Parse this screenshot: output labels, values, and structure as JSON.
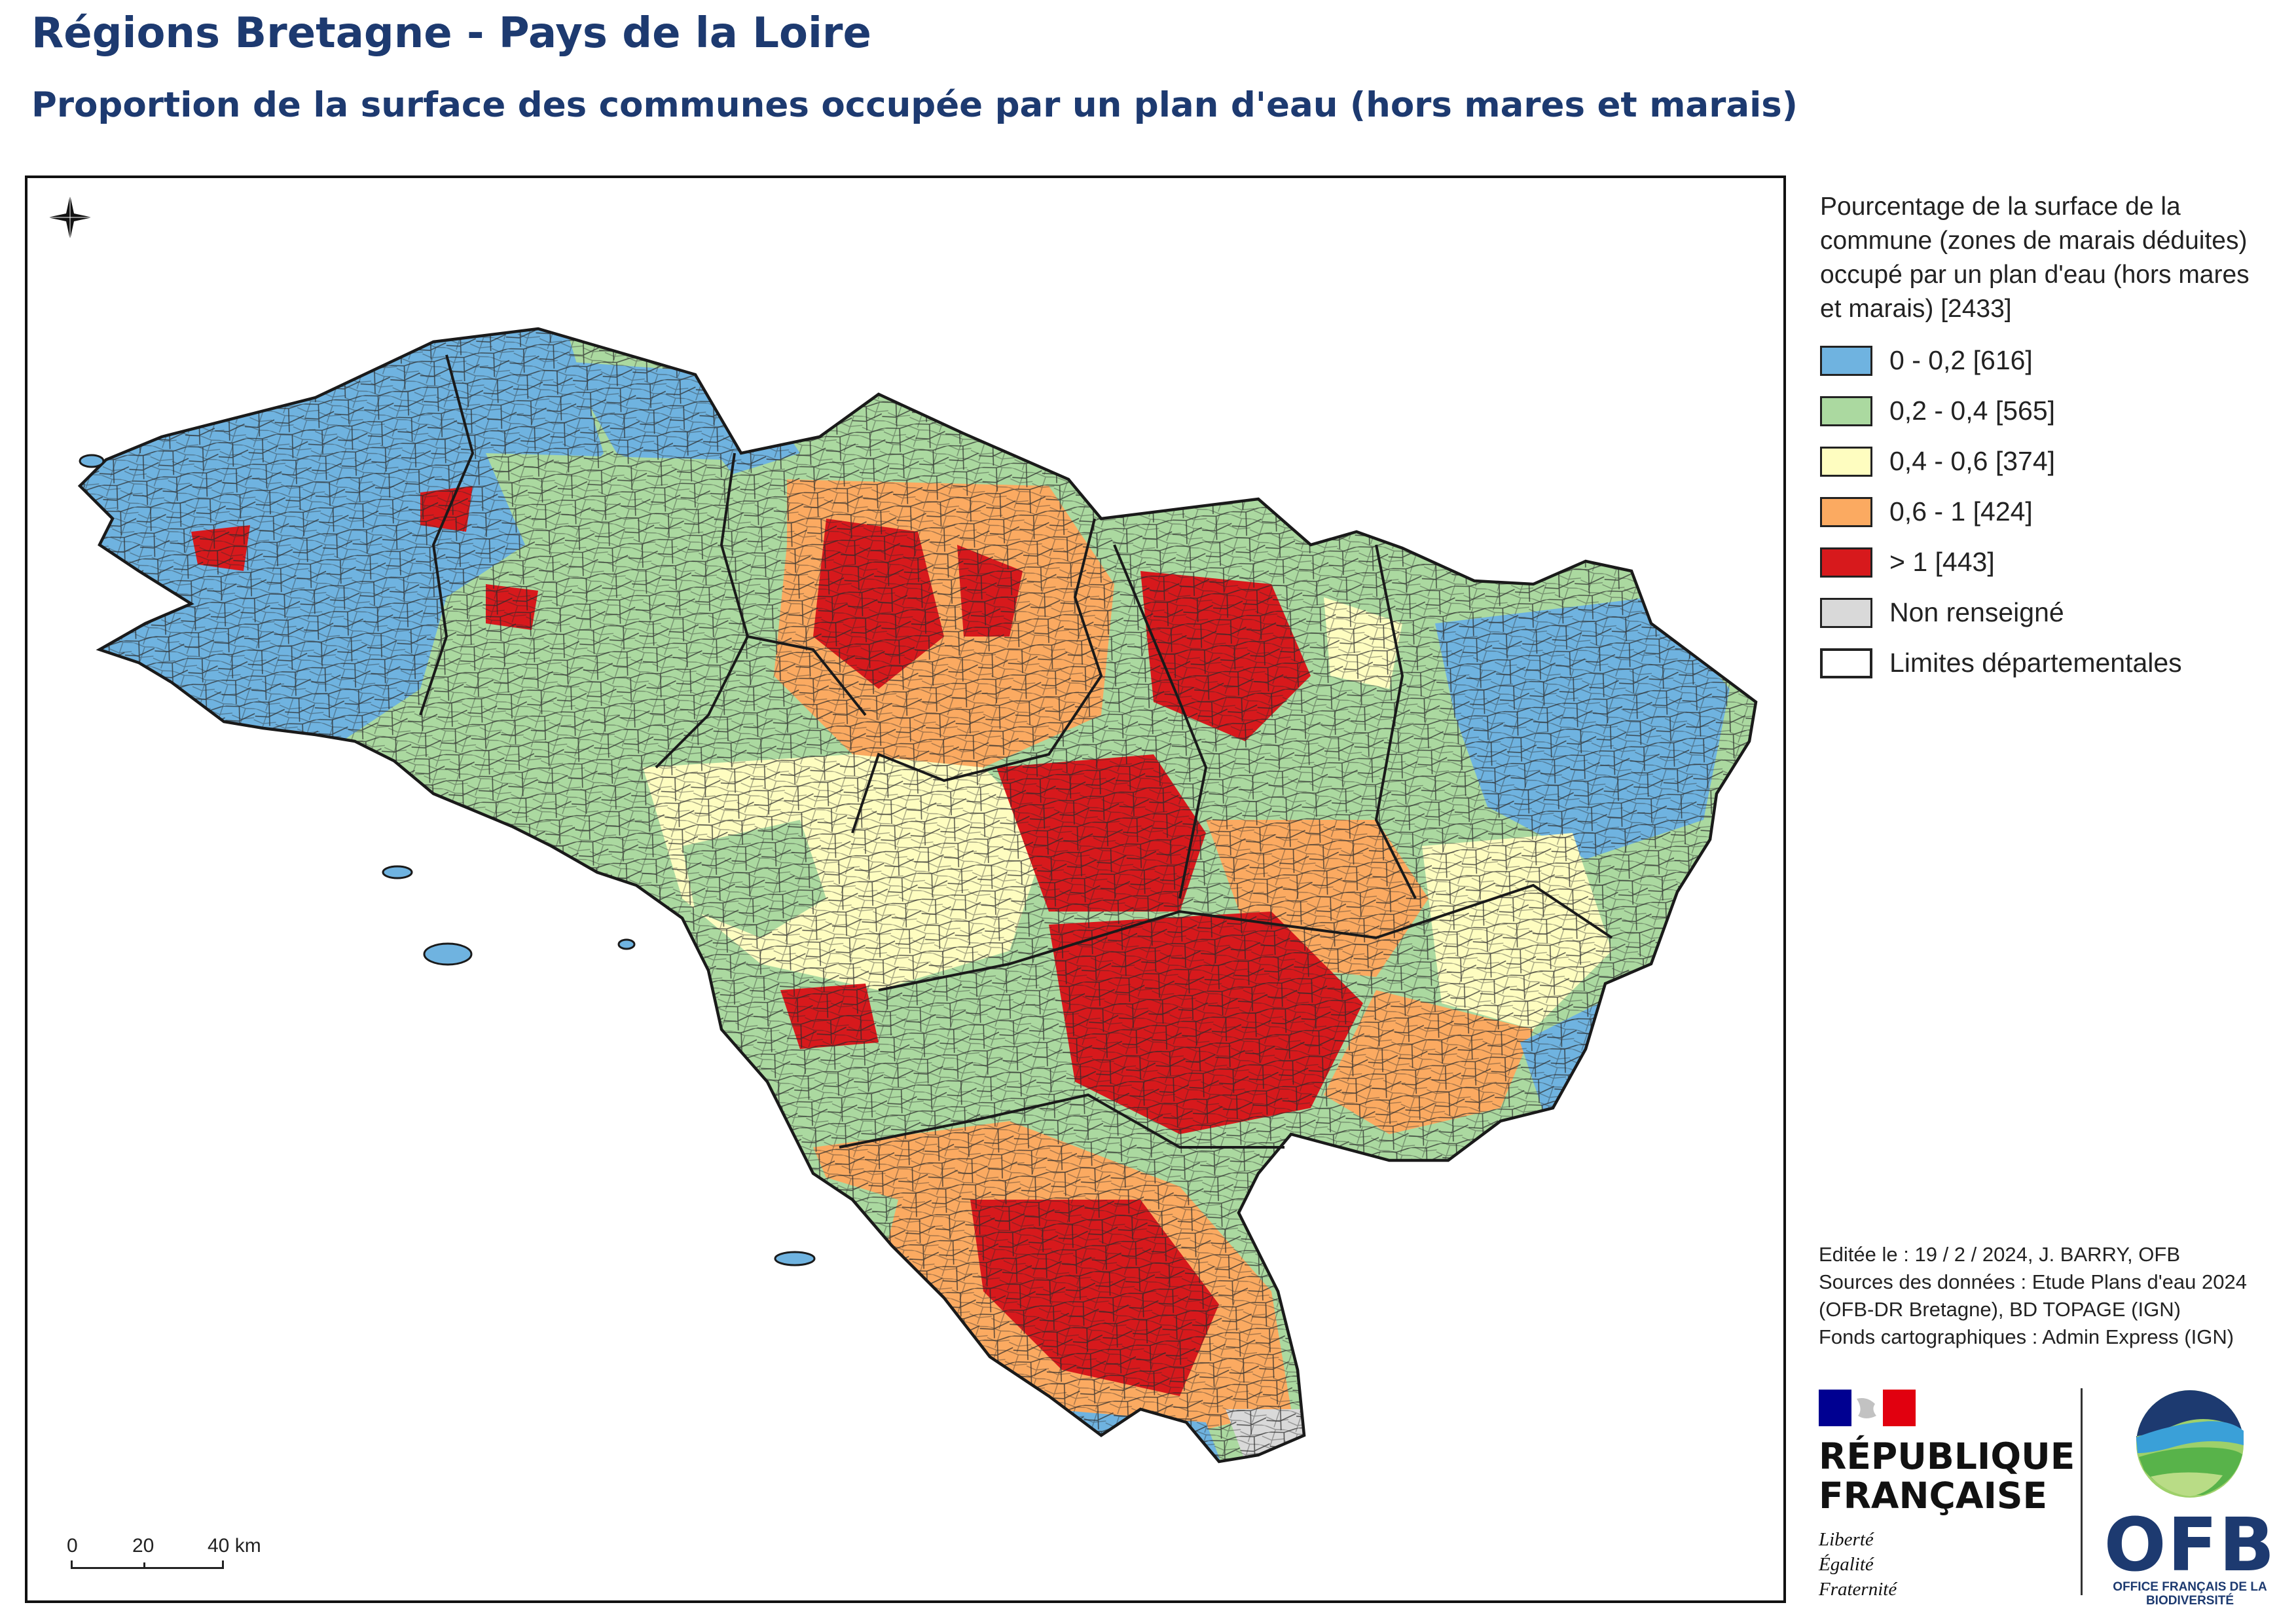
{
  "header": {
    "title": "Régions Bretagne - Pays de la Loire",
    "subtitle": "Proportion de la surface des communes occupée par un plan d'eau (hors mares et marais)"
  },
  "map": {
    "north_arrow": "north-arrow-icon",
    "scale": {
      "labels": [
        "0",
        "20",
        "40 km"
      ]
    }
  },
  "legend": {
    "title": "Pourcentage de la surface de la commune (zones de marais déduites) occupé par un plan d'eau (hors mares et marais) [2433]",
    "items": [
      {
        "label": "0 - 0,2 [616]",
        "color": "#6fb3e0"
      },
      {
        "label": "0,2 - 0,4 [565]",
        "color": "#abd9a0"
      },
      {
        "label": "0,4 - 0,6 [374]",
        "color": "#fefdc0"
      },
      {
        "label": "0,6 - 1 [424]",
        "color": "#fbaa61"
      },
      {
        "label": "> 1 [443]",
        "color": "#d7191c"
      },
      {
        "label": "Non renseigné",
        "color": "#d9d9d9"
      },
      {
        "label": "Limites départementales",
        "color": "#ffffff"
      }
    ]
  },
  "credits": {
    "edited": "Editée le : 19 / 2 / 2024, J. BARRY, OFB",
    "sources": "Sources des données : Etude Plans d'eau 2024 (OFB-DR Bretagne), BD TOPAGE (IGN)",
    "fonds": "Fonds cartographiques : Admin Express (IGN)"
  },
  "logos": {
    "rf_name": "RÉPUBLIQUE FRANÇAISE",
    "rf_motto": [
      "Liberté",
      "Égalité",
      "Fraternité"
    ],
    "ofb_sigle": "OFB",
    "ofb_full": "OFFICE FRANÇAIS DE LA BIODIVERSITÉ"
  }
}
